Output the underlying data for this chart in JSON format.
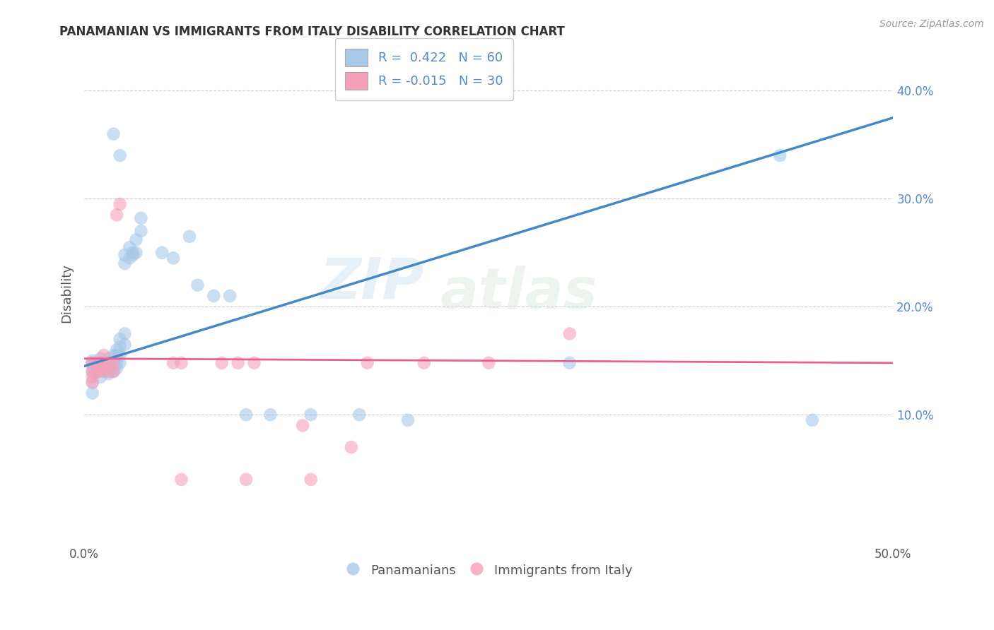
{
  "title": "PANAMANIAN VS IMMIGRANTS FROM ITALY DISABILITY CORRELATION CHART",
  "source": "Source: ZipAtlas.com",
  "ylabel": "Disability",
  "xlim": [
    0.0,
    0.5
  ],
  "ylim": [
    -0.02,
    0.445
  ],
  "yticks": [
    0.1,
    0.2,
    0.3,
    0.4
  ],
  "ytick_labels": [
    "10.0%",
    "20.0%",
    "30.0%",
    "40.0%"
  ],
  "xticks": [
    0.0,
    0.5
  ],
  "xtick_labels": [
    "0.0%",
    "50.0%"
  ],
  "R_blue": 0.422,
  "N_blue": 60,
  "R_pink": -0.015,
  "N_pink": 30,
  "legend_label_blue": "Panamanians",
  "legend_label_pink": "Immigrants from Italy",
  "blue_color": "#a8c8e8",
  "pink_color": "#f4a0b8",
  "blue_line_color": "#4488cc",
  "pink_line_color": "#e86090",
  "blue_line_x0": 0.0,
  "blue_line_y0": 0.145,
  "blue_line_x1": 0.5,
  "blue_line_y1": 0.375,
  "pink_line_x0": 0.0,
  "pink_line_y0": 0.152,
  "pink_line_x1": 0.5,
  "pink_line_y1": 0.148,
  "scatter_blue": [
    [
      0.005,
      0.14
    ],
    [
      0.005,
      0.145
    ],
    [
      0.005,
      0.148
    ],
    [
      0.005,
      0.15
    ],
    [
      0.005,
      0.13
    ],
    [
      0.005,
      0.12
    ],
    [
      0.008,
      0.143
    ],
    [
      0.008,
      0.148
    ],
    [
      0.008,
      0.14
    ],
    [
      0.01,
      0.145
    ],
    [
      0.01,
      0.148
    ],
    [
      0.01,
      0.152
    ],
    [
      0.01,
      0.135
    ],
    [
      0.012,
      0.145
    ],
    [
      0.012,
      0.14
    ],
    [
      0.012,
      0.148
    ],
    [
      0.015,
      0.148
    ],
    [
      0.015,
      0.143
    ],
    [
      0.015,
      0.138
    ],
    [
      0.015,
      0.152
    ],
    [
      0.018,
      0.155
    ],
    [
      0.018,
      0.148
    ],
    [
      0.018,
      0.143
    ],
    [
      0.018,
      0.14
    ],
    [
      0.02,
      0.16
    ],
    [
      0.02,
      0.155
    ],
    [
      0.02,
      0.148
    ],
    [
      0.02,
      0.143
    ],
    [
      0.022,
      0.17
    ],
    [
      0.022,
      0.163
    ],
    [
      0.022,
      0.155
    ],
    [
      0.022,
      0.148
    ],
    [
      0.025,
      0.175
    ],
    [
      0.025,
      0.165
    ],
    [
      0.025,
      0.248
    ],
    [
      0.025,
      0.24
    ],
    [
      0.028,
      0.245
    ],
    [
      0.028,
      0.255
    ],
    [
      0.03,
      0.25
    ],
    [
      0.03,
      0.248
    ],
    [
      0.032,
      0.25
    ],
    [
      0.032,
      0.262
    ],
    [
      0.035,
      0.282
    ],
    [
      0.035,
      0.27
    ],
    [
      0.018,
      0.36
    ],
    [
      0.022,
      0.34
    ],
    [
      0.048,
      0.25
    ],
    [
      0.055,
      0.245
    ],
    [
      0.065,
      0.265
    ],
    [
      0.07,
      0.22
    ],
    [
      0.08,
      0.21
    ],
    [
      0.09,
      0.21
    ],
    [
      0.1,
      0.1
    ],
    [
      0.115,
      0.1
    ],
    [
      0.14,
      0.1
    ],
    [
      0.17,
      0.1
    ],
    [
      0.2,
      0.095
    ],
    [
      0.3,
      0.148
    ],
    [
      0.43,
      0.34
    ],
    [
      0.45,
      0.095
    ]
  ],
  "scatter_pink": [
    [
      0.005,
      0.148
    ],
    [
      0.005,
      0.14
    ],
    [
      0.005,
      0.135
    ],
    [
      0.005,
      0.13
    ],
    [
      0.008,
      0.148
    ],
    [
      0.008,
      0.14
    ],
    [
      0.01,
      0.148
    ],
    [
      0.01,
      0.14
    ],
    [
      0.012,
      0.155
    ],
    [
      0.012,
      0.143
    ],
    [
      0.015,
      0.148
    ],
    [
      0.015,
      0.14
    ],
    [
      0.018,
      0.148
    ],
    [
      0.018,
      0.14
    ],
    [
      0.02,
      0.285
    ],
    [
      0.022,
      0.295
    ],
    [
      0.055,
      0.148
    ],
    [
      0.06,
      0.148
    ],
    [
      0.085,
      0.148
    ],
    [
      0.095,
      0.148
    ],
    [
      0.105,
      0.148
    ],
    [
      0.135,
      0.09
    ],
    [
      0.165,
      0.07
    ],
    [
      0.175,
      0.148
    ],
    [
      0.21,
      0.148
    ],
    [
      0.25,
      0.148
    ],
    [
      0.3,
      0.175
    ],
    [
      0.06,
      0.04
    ],
    [
      0.1,
      0.04
    ],
    [
      0.14,
      0.04
    ]
  ],
  "watermark_zip": "ZIP",
  "watermark_atlas": "atlas",
  "background_color": "#ffffff",
  "grid_color": "#cccccc",
  "title_color": "#333333",
  "axis_label_color": "#555555",
  "right_tick_color": "#5588cc"
}
